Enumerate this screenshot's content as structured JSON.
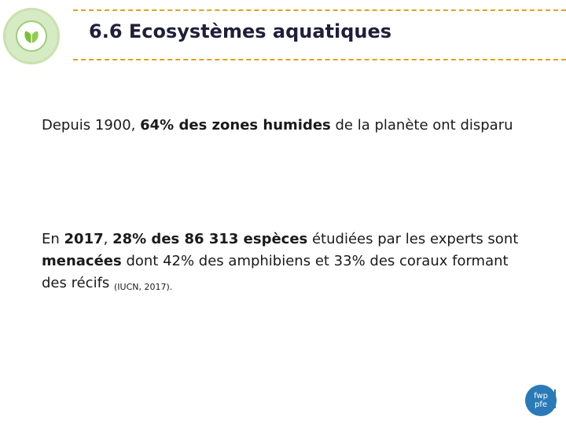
{
  "header": {
    "title": "6.6 Ecosystèmes aquatiques",
    "logo_icon": "leaf-icon"
  },
  "paragraph1": {
    "t1": "Depuis 1900, ",
    "b1": "64% des zones humides",
    "t2": " de la planète ont disparu"
  },
  "paragraph2": {
    "t1": "En ",
    "b1": "2017",
    "t2": ", ",
    "b2": "28% des 86 313 espèces",
    "t3": " étudiées par les experts sont ",
    "b3": "menacées",
    "t4": " dont 42% des amphibiens et 33% des coraux formant des récifs ",
    "source": "(IUCN, 2017)."
  },
  "footer": {
    "logo_text_line1": "fwp",
    "logo_text_line2": "pfe"
  },
  "colors": {
    "accent_dash": "#e3a21a",
    "logo_green": "#7bbf3a",
    "footer_logo_blue": "#2a7ab8"
  }
}
